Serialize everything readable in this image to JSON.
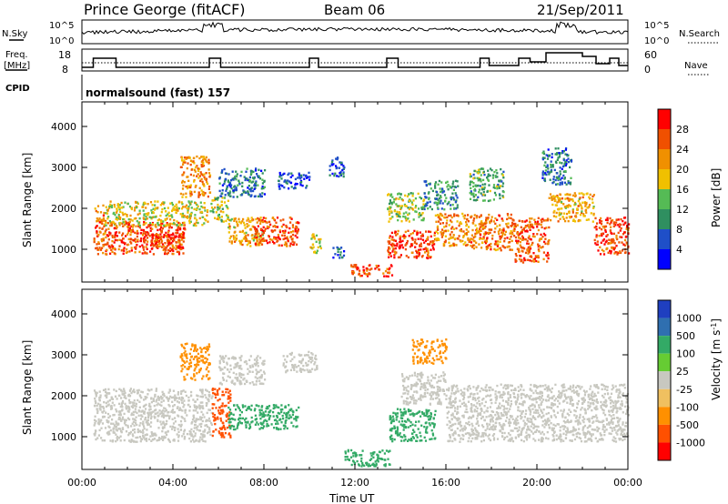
{
  "header": {
    "station": "Prince George (fitACF)",
    "beam": "Beam 06",
    "date": "21/Sep/2011"
  },
  "strip_labels": {
    "nsky": "N.Sky",
    "nsky_ticks": [
      "10^5",
      "10^0"
    ],
    "nsearch": "N.Search",
    "nsearch_ticks": [
      "10^5",
      "10^0"
    ],
    "freq_line1": "Freq.",
    "freq_line2": "[MHz]",
    "freq_ticks": [
      "18",
      "8"
    ],
    "nave": "Nave",
    "nave_ticks": [
      "60",
      "0"
    ],
    "cpid": "CPID",
    "cpid_value": "normalsound (fast) 157"
  },
  "colors": {
    "power": [
      "#0000ff",
      "#1f4fc8",
      "#2f8f60",
      "#55bb55",
      "#f0c000",
      "#f09000",
      "#f05000",
      "#ff0000"
    ],
    "velocity": [
      "#ff0000",
      "#ff5000",
      "#ff9000",
      "#f0c060",
      "#c8c8c0",
      "#66cc33",
      "#33aa66",
      "#2f6fb0",
      "#1f3fc0"
    ]
  },
  "chart_data": [
    {
      "type": "heatmap",
      "name": "power-panel",
      "ylabel": "Slant Range [km]",
      "yticks": [
        "1000",
        "2000",
        "3000",
        "4000"
      ],
      "ylim": [
        200,
        4600
      ],
      "xlim": [
        "00:00",
        "24:00"
      ],
      "colorbar_label": "Power [dB]",
      "colorbar_ticks": [
        "4",
        "8",
        "12",
        "16",
        "20",
        "24",
        "28"
      ],
      "regions": [
        {
          "t0": 0.5,
          "t1": 1.0,
          "r0": 900,
          "r1": 2100,
          "v": 24
        },
        {
          "t0": 1.0,
          "t1": 4.5,
          "r0": 900,
          "r1": 1700,
          "v": 27
        },
        {
          "t0": 1.0,
          "t1": 5.5,
          "r0": 1600,
          "r1": 2200,
          "v": 18
        },
        {
          "t0": 4.3,
          "t1": 5.6,
          "r0": 2300,
          "r1": 3300,
          "v": 22
        },
        {
          "t0": 2.5,
          "t1": 4.5,
          "r0": 1000,
          "r1": 1400,
          "v": 28
        },
        {
          "t0": 5.6,
          "t1": 6.4,
          "r0": 1700,
          "r1": 2300,
          "v": 16
        },
        {
          "t0": 6.4,
          "t1": 8.0,
          "r0": 1100,
          "r1": 1800,
          "v": 20
        },
        {
          "t0": 7.5,
          "t1": 9.5,
          "r0": 1100,
          "r1": 1800,
          "v": 26
        },
        {
          "t0": 6.0,
          "t1": 8.0,
          "r0": 2300,
          "r1": 3000,
          "v": 8
        },
        {
          "t0": 8.6,
          "t1": 10.0,
          "r0": 2500,
          "r1": 2900,
          "v": 6
        },
        {
          "t0": 10.0,
          "t1": 10.5,
          "r0": 900,
          "r1": 1400,
          "v": 18
        },
        {
          "t0": 11.0,
          "t1": 11.5,
          "r0": 800,
          "r1": 1100,
          "v": 6
        },
        {
          "t0": 10.8,
          "t1": 11.5,
          "r0": 2800,
          "r1": 3300,
          "v": 6
        },
        {
          "t0": 11.8,
          "t1": 13.6,
          "r0": 350,
          "r1": 650,
          "v": 26
        },
        {
          "t0": 13.4,
          "t1": 15.5,
          "r0": 800,
          "r1": 1500,
          "v": 27
        },
        {
          "t0": 13.4,
          "t1": 15.0,
          "r0": 1700,
          "r1": 2400,
          "v": 16
        },
        {
          "t0": 15.5,
          "t1": 17.0,
          "r0": 1100,
          "r1": 1900,
          "v": 22
        },
        {
          "t0": 17.0,
          "t1": 19.0,
          "r0": 1000,
          "r1": 1900,
          "v": 24
        },
        {
          "t0": 19.0,
          "t1": 20.5,
          "r0": 700,
          "r1": 1800,
          "v": 26
        },
        {
          "t0": 20.5,
          "t1": 22.5,
          "r0": 1700,
          "r1": 2400,
          "v": 20
        },
        {
          "t0": 22.5,
          "t1": 24.0,
          "r0": 900,
          "r1": 1800,
          "v": 27
        },
        {
          "t0": 15.0,
          "t1": 16.5,
          "r0": 2000,
          "r1": 2700,
          "v": 10
        },
        {
          "t0": 17.0,
          "t1": 18.5,
          "r0": 2200,
          "r1": 3000,
          "v": 12
        },
        {
          "t0": 20.2,
          "t1": 21.5,
          "r0": 2600,
          "r1": 3500,
          "v": 8
        }
      ]
    },
    {
      "type": "heatmap",
      "name": "velocity-panel",
      "ylabel": "Slant Range [km]",
      "yticks": [
        "1000",
        "2000",
        "3000",
        "4000"
      ],
      "ylim": [
        200,
        4600
      ],
      "xlabel": "Time UT",
      "xticks": [
        "00:00",
        "04:00",
        "08:00",
        "12:00",
        "16:00",
        "20:00",
        "00:00"
      ],
      "xlim": [
        "00:00",
        "24:00"
      ],
      "colorbar_label": "Velocity [m s",
      "colorbar_label_sup": "-1",
      "colorbar_label_end": "]",
      "colorbar_ticks": [
        "1000",
        "500",
        "100",
        "25",
        "-25",
        "-100",
        "-500",
        "-1000"
      ],
      "regions": [
        {
          "t0": 0.5,
          "t1": 5.7,
          "r0": 900,
          "r1": 2200,
          "v": 0
        },
        {
          "t0": 4.3,
          "t1": 5.6,
          "r0": 2400,
          "r1": 3300,
          "v": -200
        },
        {
          "t0": 5.7,
          "t1": 6.5,
          "r0": 1000,
          "r1": 2200,
          "v": -600
        },
        {
          "t0": 6.4,
          "t1": 9.5,
          "r0": 1200,
          "r1": 1800,
          "v": 200
        },
        {
          "t0": 6.0,
          "t1": 8.0,
          "r0": 2300,
          "r1": 3000,
          "v": 0
        },
        {
          "t0": 8.8,
          "t1": 10.3,
          "r0": 2600,
          "r1": 3100,
          "v": 0
        },
        {
          "t0": 11.5,
          "t1": 13.5,
          "r0": 300,
          "r1": 700,
          "v": 120
        },
        {
          "t0": 13.5,
          "t1": 15.5,
          "r0": 900,
          "r1": 1700,
          "v": 200
        },
        {
          "t0": 14.0,
          "t1": 16.0,
          "r0": 1800,
          "r1": 2600,
          "v": 0
        },
        {
          "t0": 16.0,
          "t1": 24.0,
          "r0": 900,
          "r1": 2300,
          "v": 0
        },
        {
          "t0": 14.5,
          "t1": 16.0,
          "r0": 2800,
          "r1": 3400,
          "v": -150
        }
      ]
    }
  ]
}
